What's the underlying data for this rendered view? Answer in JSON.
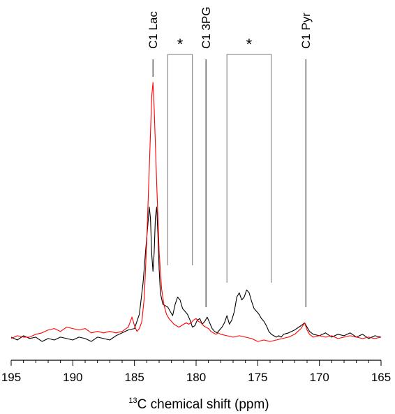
{
  "chart_data": {
    "type": "line",
    "xlabel": {
      "superscript": "13",
      "text": "C chemical shift (ppm)"
    },
    "xlim": [
      195,
      165
    ],
    "x_reversed": true,
    "xticks": [
      "195",
      "190",
      "185",
      "180",
      "175",
      "170",
      "165"
    ],
    "yaxis_visible": false,
    "grid": false,
    "annotations": [
      {
        "label": "C1 Lac",
        "x": 183.5
      },
      {
        "label": "C1 3PG",
        "x": 179.2
      },
      {
        "label": "C1 Pyr",
        "x": 171.1
      }
    ],
    "brackets": [
      {
        "label": "*",
        "x_from": 182.3,
        "x_to": 180.3
      },
      {
        "label": "*",
        "x_from": 177.5,
        "x_to": 173.9
      }
    ],
    "series": [
      {
        "color": "#000000",
        "x": [
          195.0,
          194.5,
          194.0,
          193.5,
          193.0,
          192.5,
          192.0,
          191.5,
          191.0,
          190.5,
          190.0,
          189.5,
          189.0,
          188.5,
          188.0,
          187.5,
          187.0,
          186.5,
          186.0,
          185.5,
          185.0,
          184.6,
          184.3,
          184.1,
          183.9,
          183.8,
          183.7,
          183.6,
          183.5,
          183.4,
          183.3,
          183.2,
          183.1,
          183.0,
          182.9,
          182.7,
          182.5,
          182.3,
          182.1,
          181.9,
          181.7,
          181.5,
          181.3,
          181.1,
          180.9,
          180.7,
          180.5,
          180.3,
          180.1,
          179.9,
          179.7,
          179.5,
          179.3,
          179.1,
          178.9,
          178.7,
          178.5,
          178.3,
          178.1,
          177.9,
          177.7,
          177.5,
          177.3,
          177.1,
          176.9,
          176.7,
          176.5,
          176.3,
          176.1,
          175.9,
          175.7,
          175.5,
          175.3,
          175.1,
          174.9,
          174.7,
          174.5,
          174.3,
          174.1,
          173.9,
          173.7,
          173.5,
          173.3,
          173.1,
          172.9,
          172.5,
          172.0,
          171.5,
          171.2,
          171.0,
          170.8,
          170.5,
          170.0,
          169.5,
          169.0,
          168.5,
          168.0,
          167.5,
          167.0,
          166.5,
          166.0,
          165.5,
          165.0
        ],
        "y": [
          0.02,
          0.0,
          0.03,
          0.01,
          0.02,
          -0.01,
          0.01,
          0.0,
          0.02,
          0.01,
          0.0,
          0.02,
          0.01,
          -0.01,
          0.02,
          0.01,
          0.0,
          0.03,
          0.05,
          0.07,
          0.08,
          0.18,
          0.4,
          0.62,
          0.82,
          0.93,
          0.85,
          0.6,
          0.48,
          0.61,
          0.86,
          0.93,
          0.75,
          0.5,
          0.33,
          0.25,
          0.24,
          0.23,
          0.2,
          0.17,
          0.25,
          0.3,
          0.28,
          0.22,
          0.2,
          0.18,
          0.14,
          0.09,
          0.1,
          0.14,
          0.15,
          0.11,
          0.13,
          0.16,
          0.12,
          0.08,
          0.06,
          0.05,
          0.07,
          0.09,
          0.12,
          0.17,
          0.11,
          0.14,
          0.2,
          0.3,
          0.33,
          0.28,
          0.3,
          0.35,
          0.33,
          0.27,
          0.22,
          0.2,
          0.18,
          0.15,
          0.13,
          0.1,
          0.06,
          0.04,
          0.03,
          0.02,
          0.03,
          0.02,
          0.04,
          0.05,
          0.07,
          0.1,
          0.12,
          0.09,
          0.06,
          0.04,
          0.03,
          0.05,
          0.02,
          0.04,
          0.03,
          0.05,
          0.02,
          0.04,
          0.01,
          0.03,
          0.02
        ]
      },
      {
        "color": "#ff0000",
        "x": [
          195.0,
          194.5,
          194.0,
          193.5,
          193.0,
          192.5,
          192.0,
          191.5,
          191.0,
          190.5,
          190.0,
          189.5,
          189.0,
          188.5,
          188.0,
          187.5,
          187.0,
          186.5,
          186.0,
          185.5,
          185.2,
          185.0,
          184.8,
          184.6,
          184.4,
          184.2,
          184.0,
          183.8,
          183.6,
          183.5,
          183.4,
          183.2,
          183.0,
          182.8,
          182.6,
          182.4,
          182.2,
          182.0,
          181.8,
          181.6,
          181.4,
          181.2,
          181.0,
          180.8,
          180.6,
          180.4,
          180.2,
          180.0,
          179.8,
          179.6,
          179.4,
          179.2,
          179.0,
          178.8,
          178.6,
          178.4,
          178.2,
          178.0,
          177.5,
          177.0,
          176.5,
          176.0,
          175.5,
          175.0,
          174.5,
          174.0,
          173.5,
          173.0,
          172.5,
          172.0,
          171.5,
          171.2,
          171.0,
          170.8,
          170.5,
          170.0,
          169.5,
          169.0,
          168.5,
          168.0,
          167.5,
          167.0,
          166.5,
          166.0,
          165.5,
          165.0
        ],
        "y": [
          0.01,
          0.03,
          0.02,
          0.02,
          0.04,
          0.05,
          0.07,
          0.08,
          0.06,
          0.09,
          0.08,
          0.07,
          0.08,
          0.05,
          0.06,
          0.05,
          0.06,
          0.05,
          0.06,
          0.09,
          0.16,
          0.1,
          0.06,
          0.08,
          0.13,
          0.3,
          0.7,
          1.2,
          1.7,
          1.8,
          1.62,
          1.1,
          0.62,
          0.36,
          0.24,
          0.18,
          0.15,
          0.13,
          0.11,
          0.1,
          0.09,
          0.1,
          0.11,
          0.12,
          0.11,
          0.12,
          0.14,
          0.15,
          0.13,
          0.12,
          0.1,
          0.09,
          0.08,
          0.06,
          0.05,
          0.04,
          0.05,
          0.04,
          0.03,
          0.02,
          0.03,
          0.02,
          0.01,
          -0.01,
          0.0,
          -0.01,
          0.0,
          0.01,
          0.02,
          0.04,
          0.08,
          0.12,
          0.07,
          0.04,
          0.02,
          0.03,
          0.02,
          0.03,
          0.01,
          0.02,
          0.03,
          0.02,
          0.01,
          0.02,
          0.01,
          0.02
        ]
      }
    ]
  }
}
